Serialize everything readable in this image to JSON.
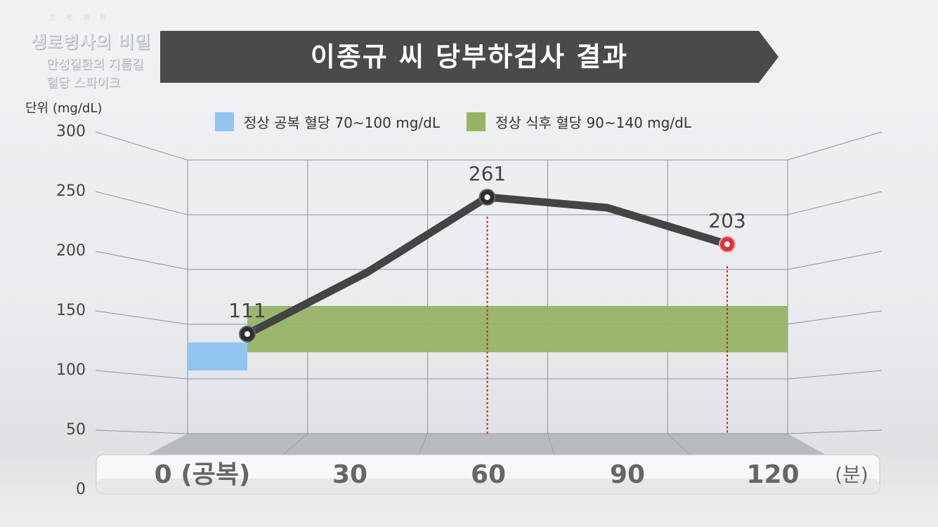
{
  "brand": {
    "hanja": "生老病死",
    "logo": "생로병사의 비밀",
    "subtitle_1": "만성질환의 지름길",
    "subtitle_2": "혈당 스파이크"
  },
  "title": "이종규 씨 당부하검사 결과",
  "colors": {
    "banner": "#4a4a4a",
    "fasting_band": "#92c4f0",
    "postmeal_band": "#97b465",
    "line": "#444444",
    "highlight_point": "#d9353a",
    "dropline": "#cc2222"
  },
  "chart_data": {
    "type": "line",
    "unit_label": "단위 (mg/dL)",
    "x_unit_label": "(분)",
    "categories": [
      "0 (공복)",
      "30",
      "60",
      "90",
      "120"
    ],
    "y_ticks": [
      "0",
      "50",
      "100",
      "150",
      "200",
      "250",
      "300"
    ],
    "ylim": [
      0,
      300
    ],
    "series": [
      {
        "values": [
          111,
          175,
          261,
          248,
          203
        ]
      }
    ],
    "point_labels": [
      {
        "index": 0,
        "text": "111"
      },
      {
        "index": 2,
        "text": "261"
      },
      {
        "index": 4,
        "text": "203"
      }
    ],
    "highlight_index": 4,
    "droplines_at": [
      2,
      4
    ],
    "bands": [
      {
        "label": "정상 공복 혈당  70~100 mg/dL",
        "from": 70,
        "to": 100,
        "x_span": "fasting"
      },
      {
        "label": "정상 식후 혈당 90~140 mg/dL",
        "from": 90,
        "to": 140,
        "x_span": "post-meal"
      }
    ],
    "legend_position": "top",
    "grid": true
  }
}
